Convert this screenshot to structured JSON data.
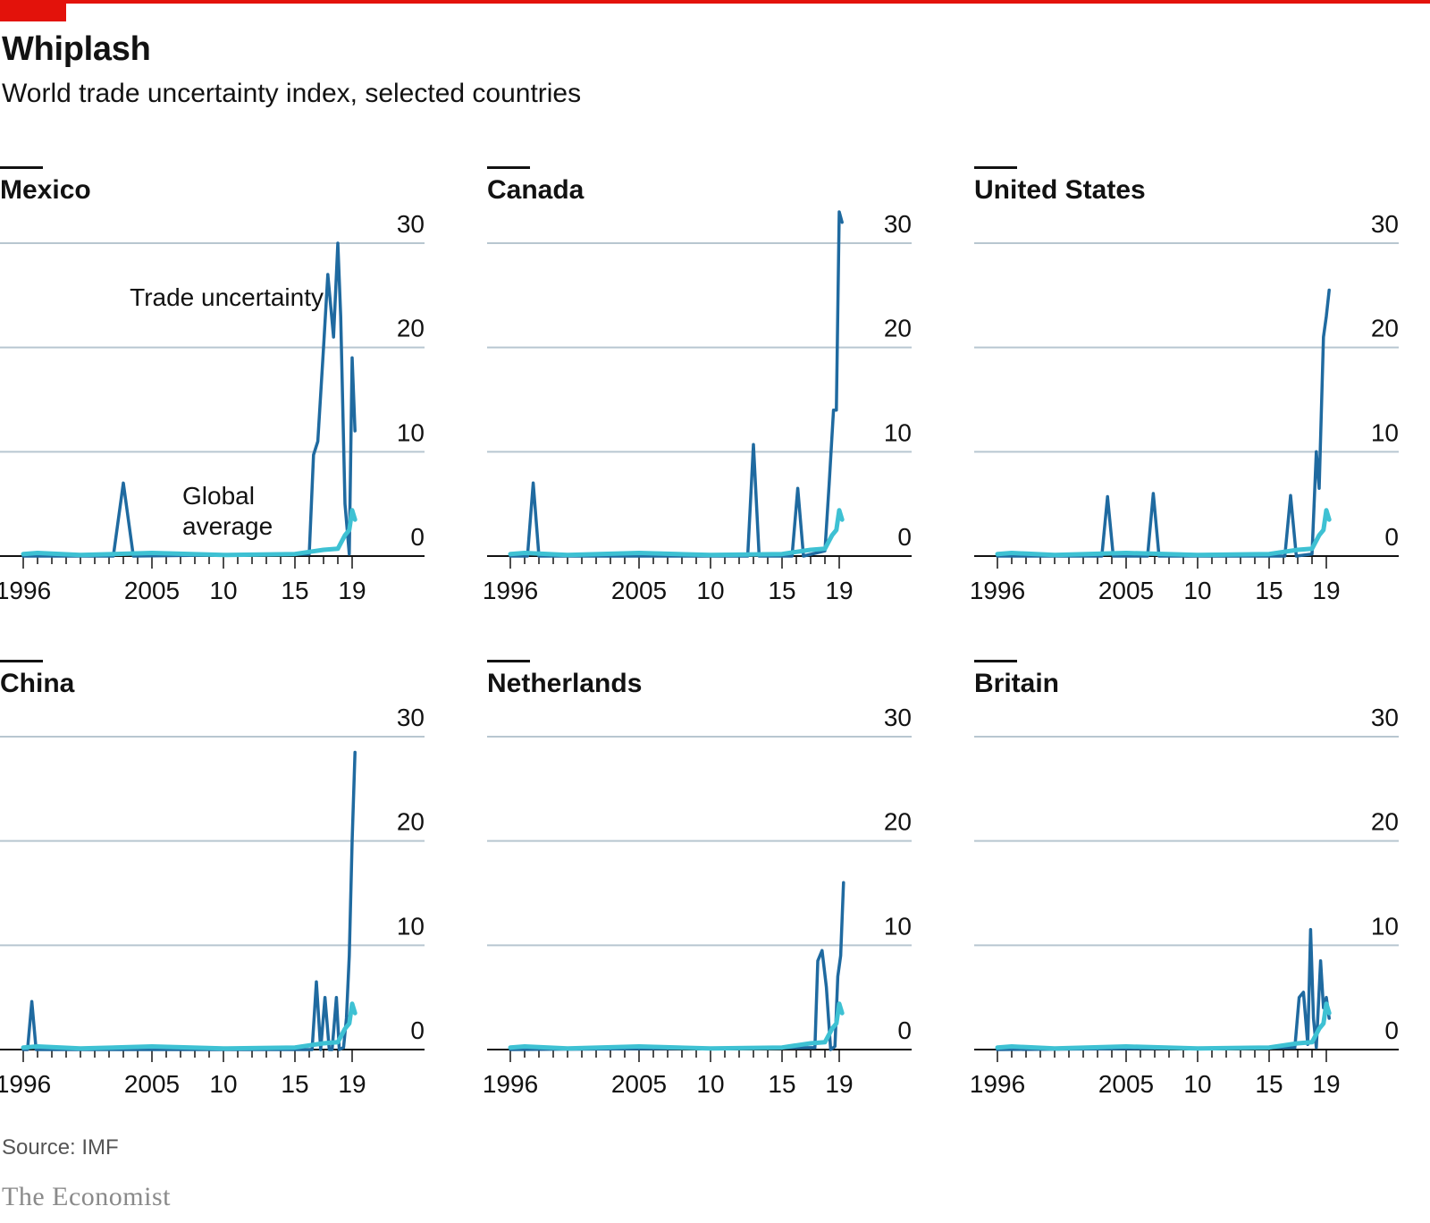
{
  "header": {
    "title": "Whiplash",
    "subtitle": "World trade uncertainty index, selected countries"
  },
  "footer": {
    "source": "Source: IMF",
    "brand": "The Economist"
  },
  "colors": {
    "accent": "#e3120b",
    "trade_uncertainty": "#1f6aa0",
    "global_average": "#3ec1d3",
    "gridline": "#b8c6d0",
    "baseline": "#121212"
  },
  "annotations": {
    "trade_uncertainty": "Trade uncertainty",
    "global_average_line1": "Global",
    "global_average_line2": "average"
  },
  "chart_data": [
    {
      "type": "line",
      "title": "Mexico",
      "ylim": [
        0,
        30
      ],
      "yticks": [
        0,
        10,
        20,
        30
      ],
      "xlim": [
        1996,
        2019.5
      ],
      "xticks": [
        {
          "value": 1996,
          "label": "1996"
        },
        {
          "value": 2005,
          "label": "2005"
        },
        {
          "value": 2010,
          "label": "10"
        },
        {
          "value": 2015,
          "label": "15"
        },
        {
          "value": 2019,
          "label": "19"
        }
      ],
      "series": [
        {
          "name": "Trade uncertainty",
          "x": [
            1996,
            2002.3,
            2003,
            2003.7,
            2016,
            2016.3,
            2016.6,
            2017,
            2017.3,
            2017.7,
            2018,
            2018.2,
            2018.5,
            2018.8,
            2019,
            2019.2
          ],
          "y": [
            0,
            0,
            7,
            0,
            0.2,
            9.7,
            11,
            20,
            27,
            21,
            30,
            23,
            5,
            0.2,
            19,
            12
          ]
        },
        {
          "name": "Global average",
          "x": [
            1996,
            1997,
            2000,
            2005,
            2010,
            2015,
            2016,
            2017,
            2018,
            2018.5,
            2018.8,
            2019,
            2019.2
          ],
          "y": [
            0.2,
            0.3,
            0.1,
            0.3,
            0.1,
            0.2,
            0.4,
            0.6,
            0.7,
            2.0,
            2.5,
            4.4,
            3.5
          ]
        }
      ]
    },
    {
      "type": "line",
      "title": "Canada",
      "ylim": [
        0,
        30
      ],
      "yticks": [
        0,
        10,
        20,
        30
      ],
      "xlim": [
        1996,
        2019.5
      ],
      "xticks": [
        {
          "value": 1996,
          "label": "1996"
        },
        {
          "value": 2005,
          "label": "2005"
        },
        {
          "value": 2010,
          "label": "10"
        },
        {
          "value": 2015,
          "label": "15"
        },
        {
          "value": 2019,
          "label": "19"
        }
      ],
      "series": [
        {
          "name": "Trade uncertainty",
          "x": [
            1996,
            1997.2,
            1997.6,
            1998,
            2012.6,
            2013,
            2013.4,
            2015.7,
            2016.1,
            2016.5,
            2018,
            2018.3,
            2018.6,
            2018.8,
            2019,
            2019.2
          ],
          "y": [
            0,
            0,
            7,
            0,
            0,
            10.7,
            0,
            0,
            6.5,
            0,
            0.5,
            7,
            14,
            14,
            33,
            32
          ]
        },
        {
          "name": "Global average",
          "x": [
            1996,
            1997,
            2000,
            2005,
            2010,
            2015,
            2016,
            2017,
            2018,
            2018.5,
            2018.8,
            2019,
            2019.2
          ],
          "y": [
            0.2,
            0.3,
            0.1,
            0.3,
            0.1,
            0.2,
            0.4,
            0.6,
            0.7,
            2.0,
            2.5,
            4.4,
            3.5
          ]
        }
      ]
    },
    {
      "type": "line",
      "title": "United States",
      "ylim": [
        0,
        30
      ],
      "yticks": [
        0,
        10,
        20,
        30
      ],
      "xlim": [
        1996,
        2019.5
      ],
      "xticks": [
        {
          "value": 1996,
          "label": "1996"
        },
        {
          "value": 2005,
          "label": "2005"
        },
        {
          "value": 2010,
          "label": "10"
        },
        {
          "value": 2015,
          "label": "15"
        },
        {
          "value": 2019,
          "label": "19"
        }
      ],
      "series": [
        {
          "name": "Trade uncertainty",
          "x": [
            1996,
            2003.3,
            2003.7,
            2004.1,
            2006.5,
            2006.9,
            2007.3,
            2016.1,
            2016.5,
            2016.9,
            2018,
            2018.3,
            2018.5,
            2018.8,
            2019,
            2019.2
          ],
          "y": [
            0,
            0,
            5.7,
            0,
            0,
            6,
            0,
            0,
            5.8,
            0,
            0.2,
            10,
            6.5,
            21,
            23,
            25.5
          ]
        },
        {
          "name": "Global average",
          "x": [
            1996,
            1997,
            2000,
            2005,
            2010,
            2015,
            2016,
            2017,
            2018,
            2018.5,
            2018.8,
            2019,
            2019.2
          ],
          "y": [
            0.2,
            0.3,
            0.1,
            0.3,
            0.1,
            0.2,
            0.4,
            0.6,
            0.7,
            2.0,
            2.5,
            4.4,
            3.5
          ]
        }
      ]
    },
    {
      "type": "line",
      "title": "China",
      "ylim": [
        0,
        30
      ],
      "yticks": [
        0,
        10,
        20,
        30
      ],
      "xlim": [
        1996,
        2019.5
      ],
      "xticks": [
        {
          "value": 1996,
          "label": "1996"
        },
        {
          "value": 2005,
          "label": "2005"
        },
        {
          "value": 2010,
          "label": "10"
        },
        {
          "value": 2015,
          "label": "15"
        },
        {
          "value": 2019,
          "label": "19"
        }
      ],
      "series": [
        {
          "name": "Trade uncertainty",
          "x": [
            1996,
            1996.3,
            1996.6,
            1996.9,
            2016.2,
            2016.5,
            2016.8,
            2017.1,
            2017.4,
            2017.6,
            2017.9,
            2018.1,
            2018.4,
            2018.6,
            2018.8,
            2019,
            2019.2
          ],
          "y": [
            0,
            0,
            4.6,
            0,
            0,
            6.5,
            0,
            5,
            0,
            0,
            5,
            0,
            0.2,
            3,
            9,
            20,
            28.5
          ]
        },
        {
          "name": "Global average",
          "x": [
            1996,
            1997,
            2000,
            2005,
            2010,
            2015,
            2016,
            2017,
            2018,
            2018.5,
            2018.8,
            2019,
            2019.2
          ],
          "y": [
            0.2,
            0.3,
            0.1,
            0.3,
            0.1,
            0.2,
            0.4,
            0.6,
            0.7,
            2.0,
            2.5,
            4.4,
            3.5
          ]
        }
      ]
    },
    {
      "type": "line",
      "title": "Netherlands",
      "ylim": [
        0,
        30
      ],
      "yticks": [
        0,
        10,
        20,
        30
      ],
      "xlim": [
        1996,
        2019.5
      ],
      "xticks": [
        {
          "value": 1996,
          "label": "1996"
        },
        {
          "value": 2005,
          "label": "2005"
        },
        {
          "value": 2010,
          "label": "10"
        },
        {
          "value": 2015,
          "label": "15"
        },
        {
          "value": 2019,
          "label": "19"
        }
      ],
      "series": [
        {
          "name": "Trade uncertainty",
          "x": [
            1996,
            2017.3,
            2017.5,
            2017.8,
            2018.1,
            2018.4,
            2018.7,
            2018.9,
            2019.1,
            2019.3
          ],
          "y": [
            0,
            0.2,
            8.5,
            9.5,
            6,
            0,
            0.3,
            7,
            9,
            16
          ]
        },
        {
          "name": "Global average",
          "x": [
            1996,
            1997,
            2000,
            2005,
            2010,
            2015,
            2016,
            2017,
            2018,
            2018.5,
            2018.8,
            2019,
            2019.2
          ],
          "y": [
            0.2,
            0.3,
            0.1,
            0.3,
            0.1,
            0.2,
            0.4,
            0.6,
            0.7,
            2.0,
            2.5,
            4.4,
            3.5
          ]
        }
      ]
    },
    {
      "type": "line",
      "title": "Britain",
      "ylim": [
        0,
        30
      ],
      "yticks": [
        0,
        10,
        20,
        30
      ],
      "xlim": [
        1996,
        2019.5
      ],
      "xticks": [
        {
          "value": 1996,
          "label": "1996"
        },
        {
          "value": 2005,
          "label": "2005"
        },
        {
          "value": 2010,
          "label": "10"
        },
        {
          "value": 2015,
          "label": "15"
        },
        {
          "value": 2019,
          "label": "19"
        }
      ],
      "series": [
        {
          "name": "Trade uncertainty",
          "x": [
            1996,
            2016.8,
            2017.1,
            2017.4,
            2017.7,
            2017.9,
            2018.1,
            2018.3,
            2018.6,
            2018.8,
            2019,
            2019.2
          ],
          "y": [
            0,
            0.2,
            5,
            5.5,
            0.5,
            11.5,
            3,
            0.2,
            8.5,
            4,
            5,
            3
          ]
        },
        {
          "name": "Global average",
          "x": [
            1996,
            1997,
            2000,
            2005,
            2010,
            2015,
            2016,
            2017,
            2018,
            2018.5,
            2018.8,
            2019,
            2019.2
          ],
          "y": [
            0.2,
            0.3,
            0.1,
            0.3,
            0.1,
            0.2,
            0.4,
            0.6,
            0.7,
            2.0,
            2.5,
            4.4,
            3.5
          ]
        }
      ]
    }
  ]
}
